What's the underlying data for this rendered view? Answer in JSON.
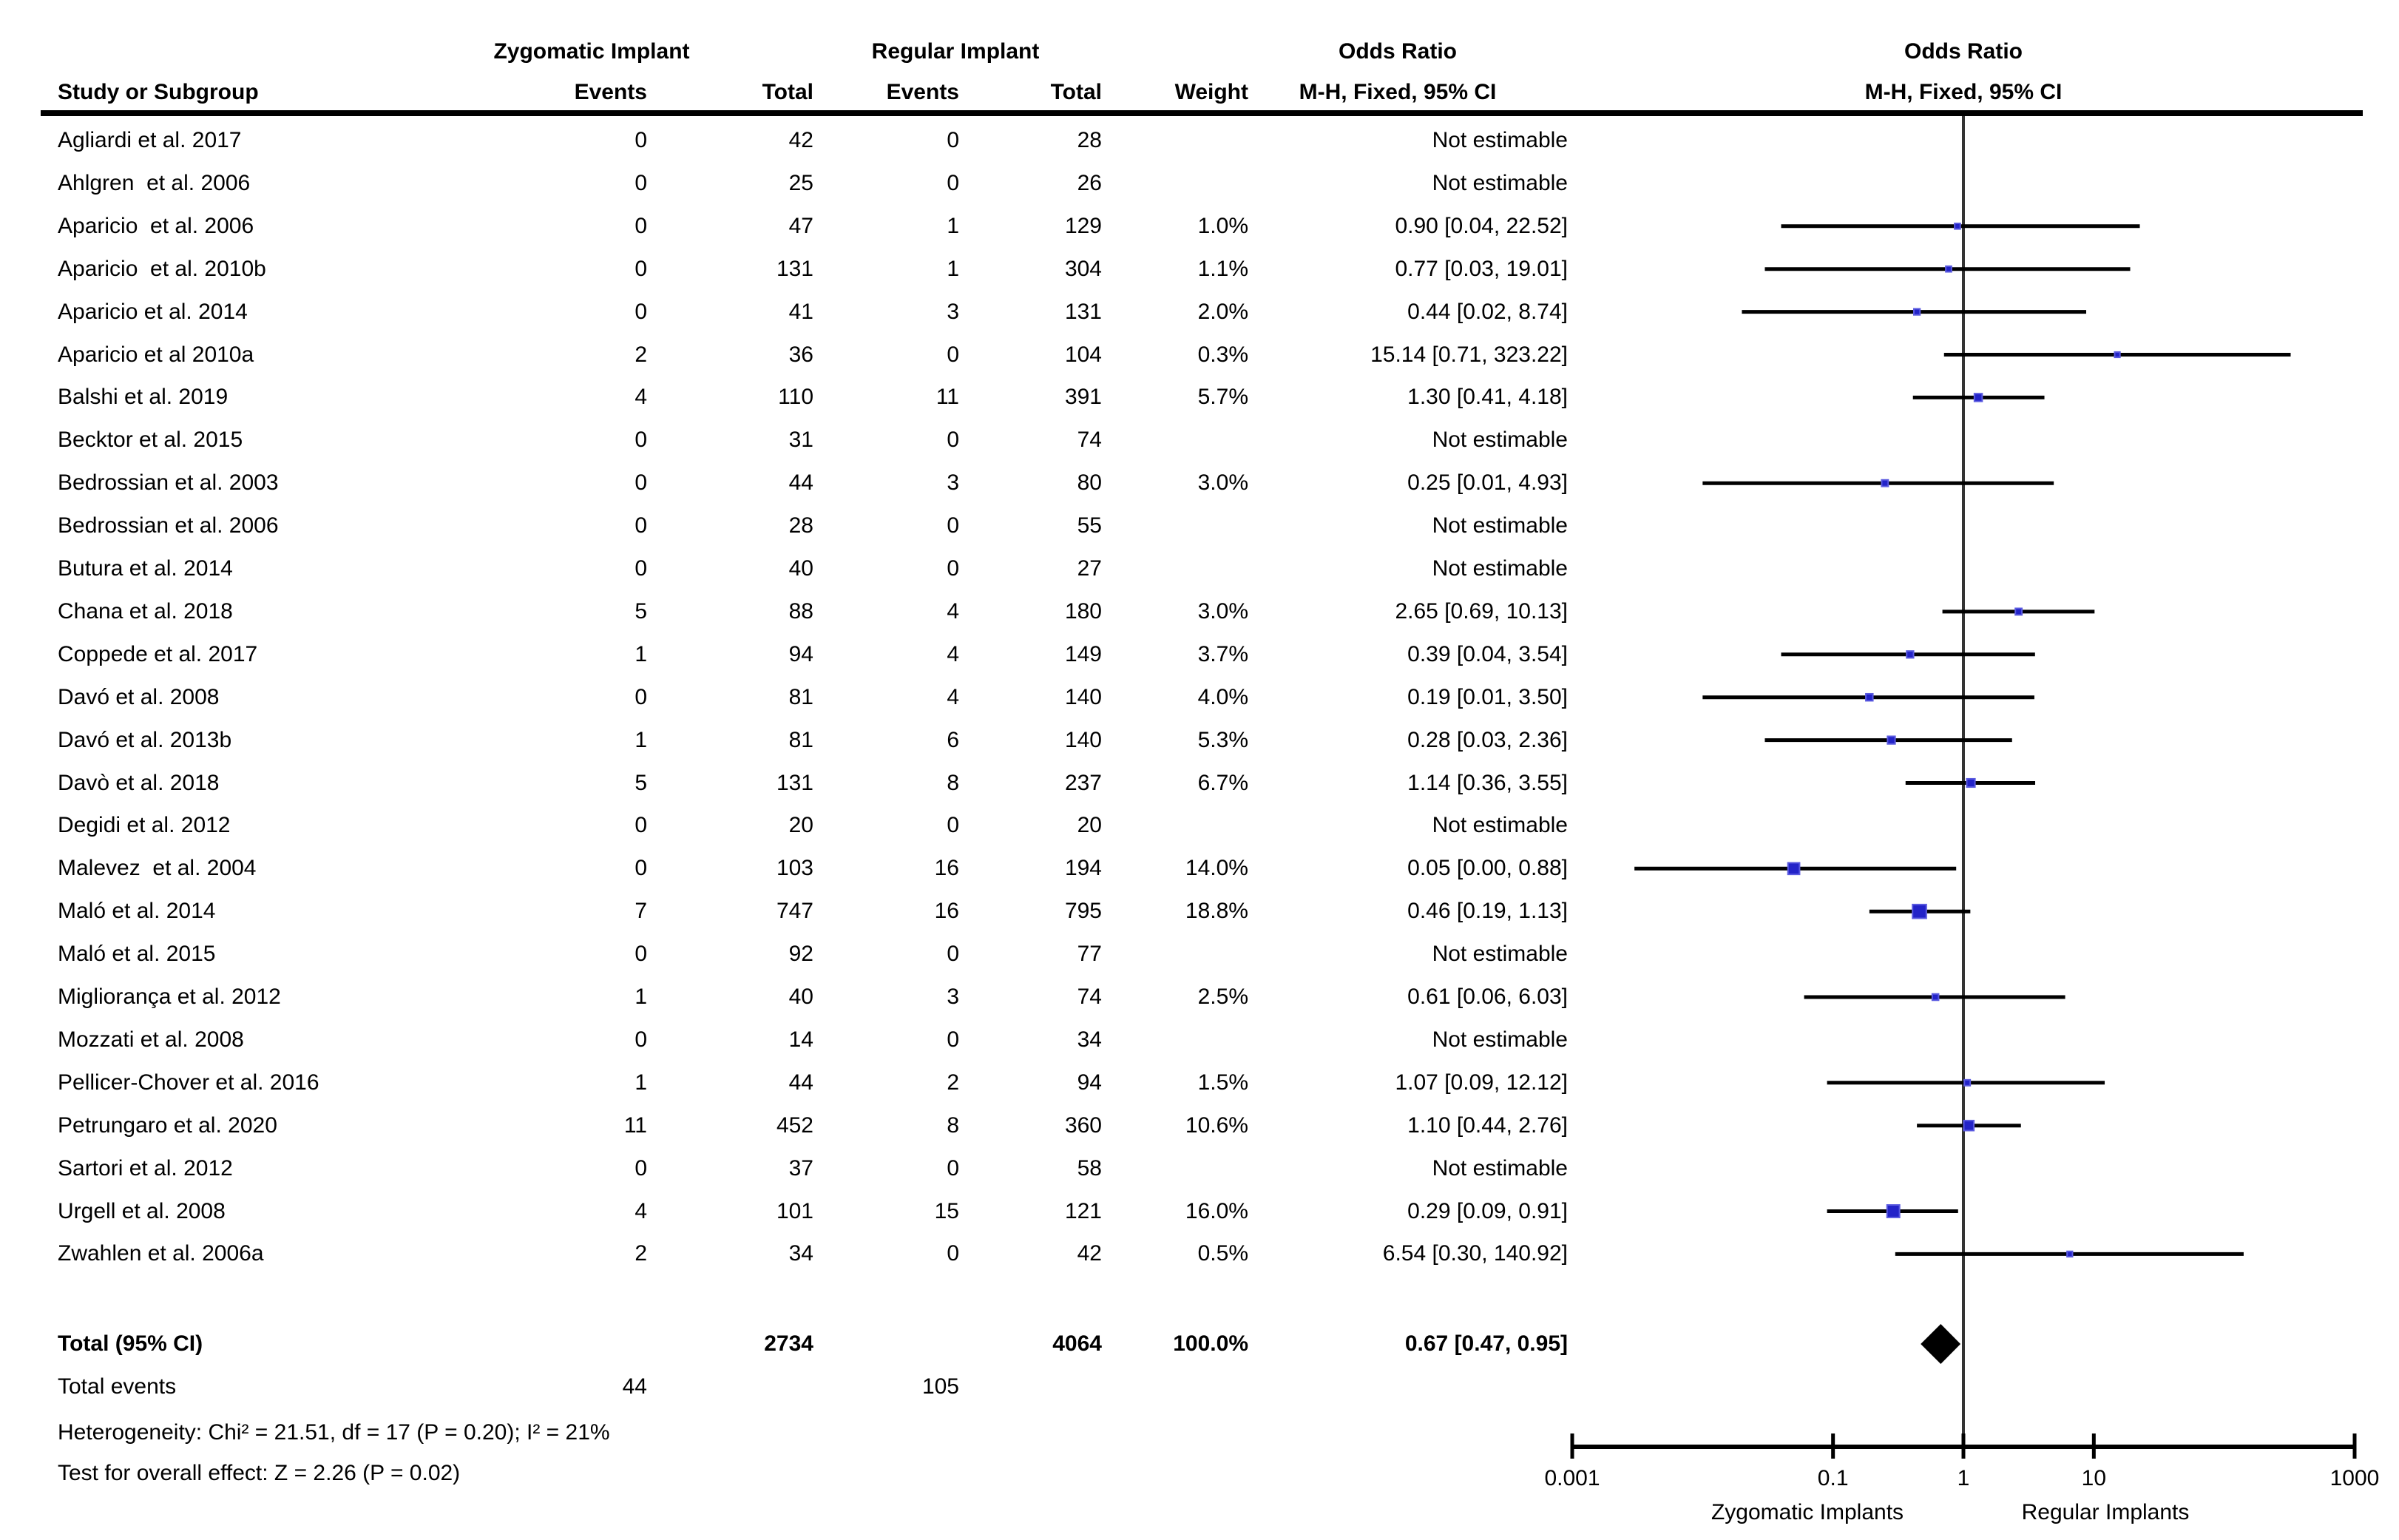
{
  "figure": {
    "background": "#ffffff",
    "marker_fill": "#2323c8",
    "marker_border": "#5a5ae0",
    "ci_line_color": "#000000",
    "diamond_color": "#000000",
    "null_line_color": "#333333"
  },
  "header": {
    "study_col": "Study or Subgroup",
    "group1_title": "Zygomatic Implant",
    "group2_title": "Regular Implant",
    "events_col_1": "Events",
    "total_col_1": "Total",
    "events_col_2": "Events",
    "total_col_2": "Total",
    "weight_col": "Weight",
    "or_col_title": "Odds Ratio",
    "or_col_sub": "M-H, Fixed, 95% CI",
    "plot_title": "Odds Ratio",
    "plot_sub": "M-H, Fixed, 95% CI"
  },
  "footer": {
    "total_label": "Total (95% CI)",
    "total_events_label": "Total events",
    "heterogeneity": "Heterogeneity: Chi² = 21.51, df = 17 (P = 0.20); I² = 21%",
    "overall_effect": "Test for overall effect: Z = 2.26 (P = 0.02)"
  },
  "chart_data": {
    "type": "forest",
    "x_scale": "log10",
    "x_range": [
      0.001,
      1000
    ],
    "x_ticks": [
      "0.001",
      "0.1",
      "1",
      "10",
      "1000"
    ],
    "x_tick_values": [
      0.001,
      0.1,
      1,
      10,
      1000
    ],
    "null_line": 1,
    "axis_caption_left": "Zygomatic Implants",
    "axis_caption_right": "Regular Implants",
    "effect_label": "Odds Ratio (M-H, Fixed, 95% CI)",
    "studies": [
      {
        "name": "Agliardi et al. 2017",
        "events1": "0",
        "total1": "42",
        "events2": "0",
        "total2": "28",
        "weight_label": "",
        "weight": null,
        "or_label": "Not estimable",
        "or": null,
        "ci_low": null,
        "ci_high": null
      },
      {
        "name": "Ahlgren  et al. 2006",
        "events1": "0",
        "total1": "25",
        "events2": "0",
        "total2": "26",
        "weight_label": "",
        "weight": null,
        "or_label": "Not estimable",
        "or": null,
        "ci_low": null,
        "ci_high": null
      },
      {
        "name": "Aparicio  et al. 2006",
        "events1": "0",
        "total1": "47",
        "events2": "1",
        "total2": "129",
        "weight_label": "1.0%",
        "weight": 1.0,
        "or_label": "0.90 [0.04, 22.52]",
        "or": 0.9,
        "ci_low": 0.04,
        "ci_high": 22.52
      },
      {
        "name": "Aparicio  et al. 2010b",
        "events1": "0",
        "total1": "131",
        "events2": "1",
        "total2": "304",
        "weight_label": "1.1%",
        "weight": 1.1,
        "or_label": "0.77 [0.03, 19.01]",
        "or": 0.77,
        "ci_low": 0.03,
        "ci_high": 19.01
      },
      {
        "name": "Aparicio et al. 2014",
        "events1": "0",
        "total1": "41",
        "events2": "3",
        "total2": "131",
        "weight_label": "2.0%",
        "weight": 2.0,
        "or_label": "0.44 [0.02, 8.74]",
        "or": 0.44,
        "ci_low": 0.02,
        "ci_high": 8.74
      },
      {
        "name": "Aparicio et al 2010a",
        "events1": "2",
        "total1": "36",
        "events2": "0",
        "total2": "104",
        "weight_label": "0.3%",
        "weight": 0.3,
        "or_label": "15.14 [0.71, 323.22]",
        "or": 15.14,
        "ci_low": 0.71,
        "ci_high": 323.22
      },
      {
        "name": "Balshi et al. 2019",
        "events1": "4",
        "total1": "110",
        "events2": "11",
        "total2": "391",
        "weight_label": "5.7%",
        "weight": 5.7,
        "or_label": "1.30 [0.41, 4.18]",
        "or": 1.3,
        "ci_low": 0.41,
        "ci_high": 4.18
      },
      {
        "name": "Becktor et al. 2015",
        "events1": "0",
        "total1": "31",
        "events2": "0",
        "total2": "74",
        "weight_label": "",
        "weight": null,
        "or_label": "Not estimable",
        "or": null,
        "ci_low": null,
        "ci_high": null
      },
      {
        "name": "Bedrossian et al. 2003",
        "events1": "0",
        "total1": "44",
        "events2": "3",
        "total2": "80",
        "weight_label": "3.0%",
        "weight": 3.0,
        "or_label": "0.25 [0.01, 4.93]",
        "or": 0.25,
        "ci_low": 0.01,
        "ci_high": 4.93
      },
      {
        "name": "Bedrossian et al. 2006",
        "events1": "0",
        "total1": "28",
        "events2": "0",
        "total2": "55",
        "weight_label": "",
        "weight": null,
        "or_label": "Not estimable",
        "or": null,
        "ci_low": null,
        "ci_high": null
      },
      {
        "name": "Butura et al. 2014",
        "events1": "0",
        "total1": "40",
        "events2": "0",
        "total2": "27",
        "weight_label": "",
        "weight": null,
        "or_label": "Not estimable",
        "or": null,
        "ci_low": null,
        "ci_high": null
      },
      {
        "name": "Chana et al. 2018",
        "events1": "5",
        "total1": "88",
        "events2": "4",
        "total2": "180",
        "weight_label": "3.0%",
        "weight": 3.0,
        "or_label": "2.65 [0.69, 10.13]",
        "or": 2.65,
        "ci_low": 0.69,
        "ci_high": 10.13
      },
      {
        "name": "Coppede et al. 2017",
        "events1": "1",
        "total1": "94",
        "events2": "4",
        "total2": "149",
        "weight_label": "3.7%",
        "weight": 3.7,
        "or_label": "0.39 [0.04, 3.54]",
        "or": 0.39,
        "ci_low": 0.04,
        "ci_high": 3.54
      },
      {
        "name": "Davó et al. 2008",
        "events1": "0",
        "total1": "81",
        "events2": "4",
        "total2": "140",
        "weight_label": "4.0%",
        "weight": 4.0,
        "or_label": "0.19 [0.01, 3.50]",
        "or": 0.19,
        "ci_low": 0.01,
        "ci_high": 3.5
      },
      {
        "name": "Davó et al. 2013b",
        "events1": "1",
        "total1": "81",
        "events2": "6",
        "total2": "140",
        "weight_label": "5.3%",
        "weight": 5.3,
        "or_label": "0.28 [0.03, 2.36]",
        "or": 0.28,
        "ci_low": 0.03,
        "ci_high": 2.36
      },
      {
        "name": "Davò et al. 2018",
        "events1": "5",
        "total1": "131",
        "events2": "8",
        "total2": "237",
        "weight_label": "6.7%",
        "weight": 6.7,
        "or_label": "1.14 [0.36, 3.55]",
        "or": 1.14,
        "ci_low": 0.36,
        "ci_high": 3.55
      },
      {
        "name": "Degidi et al. 2012",
        "events1": "0",
        "total1": "20",
        "events2": "0",
        "total2": "20",
        "weight_label": "",
        "weight": null,
        "or_label": "Not estimable",
        "or": null,
        "ci_low": null,
        "ci_high": null
      },
      {
        "name": "Malevez  et al. 2004",
        "events1": "0",
        "total1": "103",
        "events2": "16",
        "total2": "194",
        "weight_label": "14.0%",
        "weight": 14.0,
        "or_label": "0.05 [0.00, 0.88]",
        "or": 0.05,
        "ci_low": 0.003,
        "ci_high": 0.88
      },
      {
        "name": "Maló et al. 2014",
        "events1": "7",
        "total1": "747",
        "events2": "16",
        "total2": "795",
        "weight_label": "18.8%",
        "weight": 18.8,
        "or_label": "0.46 [0.19, 1.13]",
        "or": 0.46,
        "ci_low": 0.19,
        "ci_high": 1.13
      },
      {
        "name": "Maló et al. 2015",
        "events1": "0",
        "total1": "92",
        "events2": "0",
        "total2": "77",
        "weight_label": "",
        "weight": null,
        "or_label": "Not estimable",
        "or": null,
        "ci_low": null,
        "ci_high": null
      },
      {
        "name": "Migliorança et al. 2012",
        "events1": "1",
        "total1": "40",
        "events2": "3",
        "total2": "74",
        "weight_label": "2.5%",
        "weight": 2.5,
        "or_label": "0.61 [0.06, 6.03]",
        "or": 0.61,
        "ci_low": 0.06,
        "ci_high": 6.03
      },
      {
        "name": "Mozzati et al. 2008",
        "events1": "0",
        "total1": "14",
        "events2": "0",
        "total2": "34",
        "weight_label": "",
        "weight": null,
        "or_label": "Not estimable",
        "or": null,
        "ci_low": null,
        "ci_high": null
      },
      {
        "name": "Pellicer-Chover et al. 2016",
        "events1": "1",
        "total1": "44",
        "events2": "2",
        "total2": "94",
        "weight_label": "1.5%",
        "weight": 1.5,
        "or_label": "1.07 [0.09, 12.12]",
        "or": 1.07,
        "ci_low": 0.09,
        "ci_high": 12.12
      },
      {
        "name": "Petrungaro et al. 2020",
        "events1": "11",
        "total1": "452",
        "events2": "8",
        "total2": "360",
        "weight_label": "10.6%",
        "weight": 10.6,
        "or_label": "1.10 [0.44, 2.76]",
        "or": 1.1,
        "ci_low": 0.44,
        "ci_high": 2.76
      },
      {
        "name": "Sartori et al. 2012",
        "events1": "0",
        "total1": "37",
        "events2": "0",
        "total2": "58",
        "weight_label": "",
        "weight": null,
        "or_label": "Not estimable",
        "or": null,
        "ci_low": null,
        "ci_high": null
      },
      {
        "name": "Urgell et al. 2008",
        "events1": "4",
        "total1": "101",
        "events2": "15",
        "total2": "121",
        "weight_label": "16.0%",
        "weight": 16.0,
        "or_label": "0.29 [0.09, 0.91]",
        "or": 0.29,
        "ci_low": 0.09,
        "ci_high": 0.91
      },
      {
        "name": "Zwahlen et al. 2006a",
        "events1": "2",
        "total1": "34",
        "events2": "0",
        "total2": "42",
        "weight_label": "0.5%",
        "weight": 0.5,
        "or_label": "6.54 [0.30, 140.92]",
        "or": 6.54,
        "ci_low": 0.3,
        "ci_high": 140.92
      }
    ],
    "total": {
      "label": "Total (95% CI)",
      "total1": "2734",
      "total2": "4064",
      "weight_label": "100.0%",
      "or_label": "0.67 [0.47, 0.95]",
      "or": 0.67,
      "ci_low": 0.47,
      "ci_high": 0.95
    },
    "total_events": {
      "events1": "44",
      "events2": "105"
    }
  }
}
